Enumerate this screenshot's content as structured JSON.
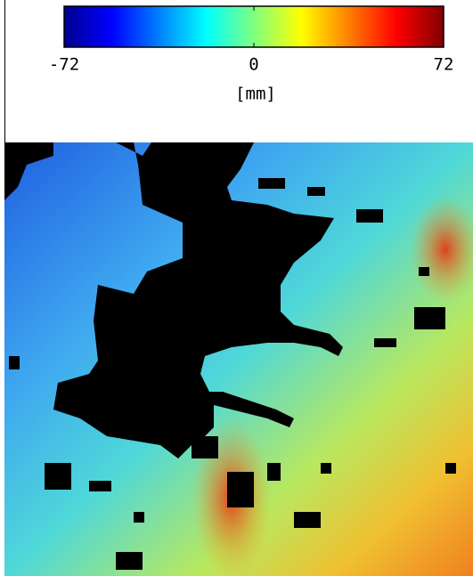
{
  "colorbar": {
    "lim": [
      -72,
      72
    ],
    "ticks": [
      -72,
      0,
      72
    ],
    "label": "[mm]"
  }
}
